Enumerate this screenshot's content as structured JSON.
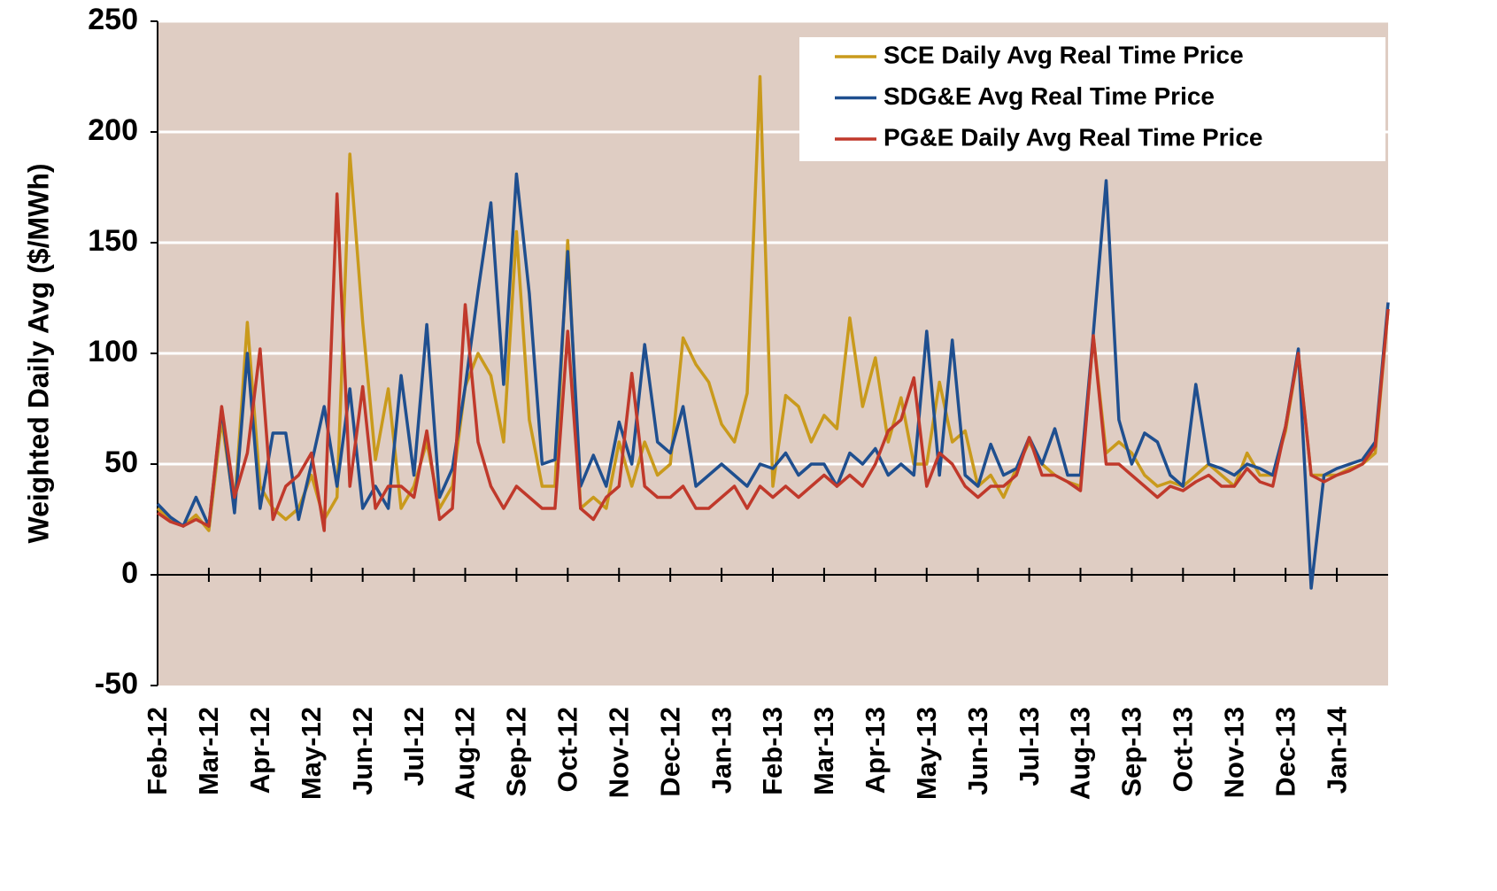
{
  "chart_data": {
    "type": "line",
    "y_label": "Weighted Daily Avg ($/MWh)",
    "categories": [
      "Feb-12",
      null,
      null,
      null,
      "Mar-12",
      null,
      null,
      null,
      "Apr-12",
      null,
      null,
      null,
      "May-12",
      null,
      null,
      null,
      "Jun-12",
      null,
      null,
      null,
      "Jul-12",
      null,
      null,
      null,
      "Aug-12",
      null,
      null,
      null,
      "Sep-12",
      null,
      null,
      null,
      "Oct-12",
      null,
      null,
      null,
      "Nov-12",
      null,
      null,
      null,
      "Dec-12",
      null,
      null,
      null,
      "Jan-13",
      null,
      null,
      null,
      "Feb-13",
      null,
      null,
      null,
      "Mar-13",
      null,
      null,
      null,
      "Apr-13",
      null,
      null,
      null,
      "May-13",
      null,
      null,
      null,
      "Jun-13",
      null,
      null,
      null,
      "Jul-13",
      null,
      null,
      null,
      "Aug-13",
      null,
      null,
      null,
      "Sep-13",
      null,
      null,
      null,
      "Oct-13",
      null,
      null,
      null,
      "Nov-13",
      null,
      null,
      null,
      "Dec-13",
      null,
      null,
      null,
      "Jan-14",
      null,
      null,
      null,
      null
    ],
    "series": [
      {
        "name": "SCE Daily Avg Real Time Price",
        "color": "#c99a1c",
        "values": [
          30,
          25,
          22,
          27,
          20,
          70,
          30,
          114,
          40,
          30,
          25,
          30,
          45,
          25,
          35,
          190,
          114,
          52,
          84,
          30,
          40,
          60,
          30,
          40,
          85,
          100,
          90,
          60,
          155,
          70,
          40,
          40,
          151,
          30,
          35,
          30,
          60,
          40,
          60,
          45,
          50,
          107,
          95,
          87,
          68,
          60,
          82,
          225,
          40,
          81,
          76,
          60,
          72,
          66,
          116,
          76,
          98,
          60,
          80,
          50,
          50,
          87,
          60,
          65,
          40,
          45,
          35,
          48,
          60,
          50,
          45,
          42,
          40,
          108,
          55,
          60,
          55,
          45,
          40,
          42,
          40,
          45,
          50,
          45,
          40,
          55,
          45,
          45,
          65,
          100,
          45,
          45,
          45,
          48,
          50,
          55,
          120
        ]
      },
      {
        "name": "SDG&E Avg Real Time Price",
        "color": "#1f4f8f",
        "values": [
          32,
          26,
          22,
          35,
          22,
          75,
          28,
          100,
          30,
          64,
          64,
          25,
          50,
          76,
          40,
          84,
          30,
          40,
          30,
          90,
          45,
          113,
          35,
          48,
          85,
          128,
          168,
          86,
          181,
          127,
          50,
          52,
          146,
          40,
          54,
          40,
          69,
          50,
          104,
          60,
          55,
          76,
          40,
          45,
          50,
          45,
          40,
          50,
          48,
          55,
          45,
          50,
          50,
          40,
          55,
          50,
          57,
          45,
          50,
          45,
          110,
          45,
          106,
          45,
          40,
          59,
          45,
          48,
          62,
          50,
          66,
          45,
          45,
          109,
          178,
          70,
          50,
          64,
          60,
          45,
          40,
          86,
          50,
          48,
          45,
          50,
          48,
          45,
          67,
          102,
          -6,
          45,
          48,
          50,
          52,
          60,
          123
        ]
      },
      {
        "name": "PG&E Daily Avg Real Time Price",
        "color": "#c0392b",
        "values": [
          28,
          24,
          22,
          25,
          22,
          76,
          35,
          55,
          102,
          25,
          40,
          45,
          55,
          20,
          172,
          40,
          85,
          30,
          40,
          40,
          35,
          65,
          25,
          30,
          122,
          60,
          40,
          30,
          40,
          35,
          30,
          30,
          110,
          30,
          25,
          35,
          40,
          91,
          40,
          35,
          35,
          40,
          30,
          30,
          35,
          40,
          30,
          40,
          35,
          40,
          35,
          40,
          45,
          40,
          45,
          40,
          50,
          65,
          70,
          89,
          40,
          55,
          50,
          40,
          35,
          40,
          40,
          45,
          62,
          45,
          45,
          42,
          38,
          108,
          50,
          50,
          45,
          40,
          35,
          40,
          38,
          42,
          45,
          40,
          40,
          48,
          42,
          40,
          67,
          100,
          45,
          42,
          45,
          47,
          50,
          58,
          120
        ]
      }
    ],
    "ylim": [
      -50,
      250
    ],
    "yticks": [
      -50,
      0,
      50,
      100,
      150,
      200,
      250
    ],
    "grid": true,
    "legend": "top-right",
    "background": "#dfcdc3"
  }
}
